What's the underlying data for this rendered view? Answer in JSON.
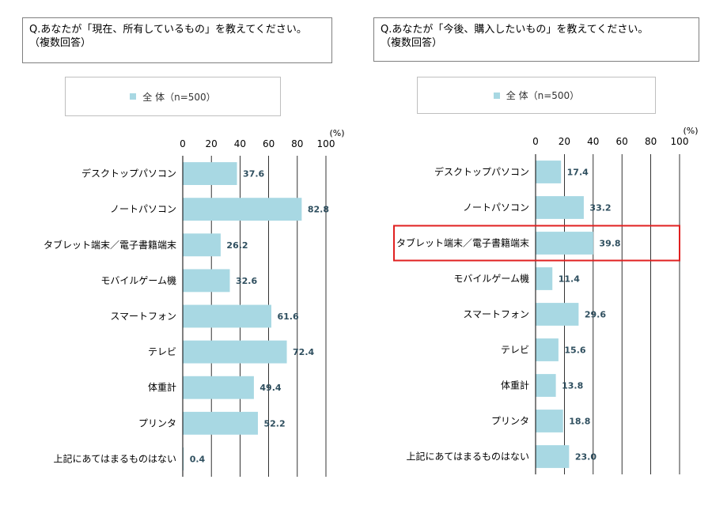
{
  "colors": {
    "bar": "#a8d8e3",
    "grid": "#000000",
    "value_label": "#2f4f5f",
    "highlight": "#e02020"
  },
  "chart_data": [
    {
      "type": "bar",
      "orientation": "horizontal",
      "question": [
        "Q.あなたが「現在、所有しているもの」を教えてください。",
        "（複数回答）"
      ],
      "legend": "全 体（n=500）",
      "unit": "(%)",
      "xlim": [
        0,
        100
      ],
      "ticks": [
        "0",
        "20",
        "40",
        "60",
        "80",
        "100"
      ],
      "categories": [
        "デスクトップパソコン",
        "ノートパソコン",
        "タブレット端末／電子書籍端末",
        "モバイルゲーム機",
        "スマートフォン",
        "テレビ",
        "体重計",
        "プリンタ",
        "上記にあてはまるものはない"
      ],
      "series": [
        {
          "name": "全 体（n=500）",
          "values": [
            37.6,
            82.8,
            26.2,
            32.6,
            61.6,
            72.4,
            49.4,
            52.2,
            0.4
          ]
        }
      ],
      "value_labels": [
        "37.6",
        "82.8",
        "26.2",
        "32.6",
        "61.6",
        "72.4",
        "49.4",
        "52.2",
        "0.4"
      ],
      "grid": true,
      "highlight_index": null
    },
    {
      "type": "bar",
      "orientation": "horizontal",
      "question": [
        "Q.あなたが「今後、購入したいもの」を教えてください。",
        "（複数回答）"
      ],
      "legend": "全 体（n=500）",
      "unit": "(%)",
      "xlim": [
        0,
        100
      ],
      "ticks": [
        "0",
        "20",
        "40",
        "60",
        "80",
        "100"
      ],
      "categories": [
        "デスクトップパソコン",
        "ノートパソコン",
        "タブレット端末／電子書籍端末",
        "モバイルゲーム機",
        "スマートフォン",
        "テレビ",
        "体重計",
        "プリンタ",
        "上記にあてはまるものはない"
      ],
      "series": [
        {
          "name": "全 体（n=500）",
          "values": [
            17.4,
            33.2,
            39.8,
            11.4,
            29.6,
            15.6,
            13.8,
            18.8,
            23.0
          ]
        }
      ],
      "value_labels": [
        "17.4",
        "33.2",
        "39.8",
        "11.4",
        "29.6",
        "15.6",
        "13.8",
        "18.8",
        "23.0"
      ],
      "grid": true,
      "highlight_index": 2
    }
  ]
}
